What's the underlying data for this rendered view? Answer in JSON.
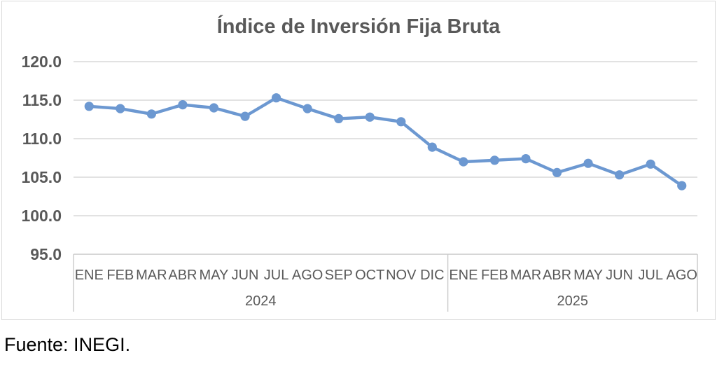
{
  "source_note": "Fuente: INEGI.",
  "colors": {
    "line": "#6c98d1",
    "label_text": "#595959",
    "gridline": "#d9d9d9",
    "axis_line": "#c9c9c9",
    "box_border": "#d9d9d9",
    "source_text": "#000000"
  },
  "chart_data": {
    "type": "line",
    "title": "Índice de Inversión Fija Bruta",
    "ylabel": "",
    "xlabel": "",
    "ylim": [
      95,
      120
    ],
    "y_ticks": [
      "120.0",
      "115.0",
      "110.0",
      "105.0",
      "100.0",
      "95.0"
    ],
    "grid": true,
    "legend": "none",
    "marker": "circle",
    "x_groups": [
      {
        "year": "2024",
        "months": [
          "ENE",
          "FEB",
          "MAR",
          "ABR",
          "MAY",
          "JUN",
          "JUL",
          "AGO",
          "SEP",
          "OCT",
          "NOV",
          "DIC"
        ],
        "values": [
          114.2,
          113.9,
          113.2,
          114.4,
          114.0,
          112.9,
          115.3,
          113.9,
          112.6,
          112.8,
          112.2,
          108.9
        ]
      },
      {
        "year": "2025",
        "months": [
          "ENE",
          "FEB",
          "MAR",
          "ABR",
          "MAY",
          "JUN",
          "JUL",
          "AGO"
        ],
        "values": [
          107.0,
          107.2,
          107.4,
          105.6,
          106.8,
          105.3,
          106.7,
          103.9
        ]
      }
    ]
  }
}
